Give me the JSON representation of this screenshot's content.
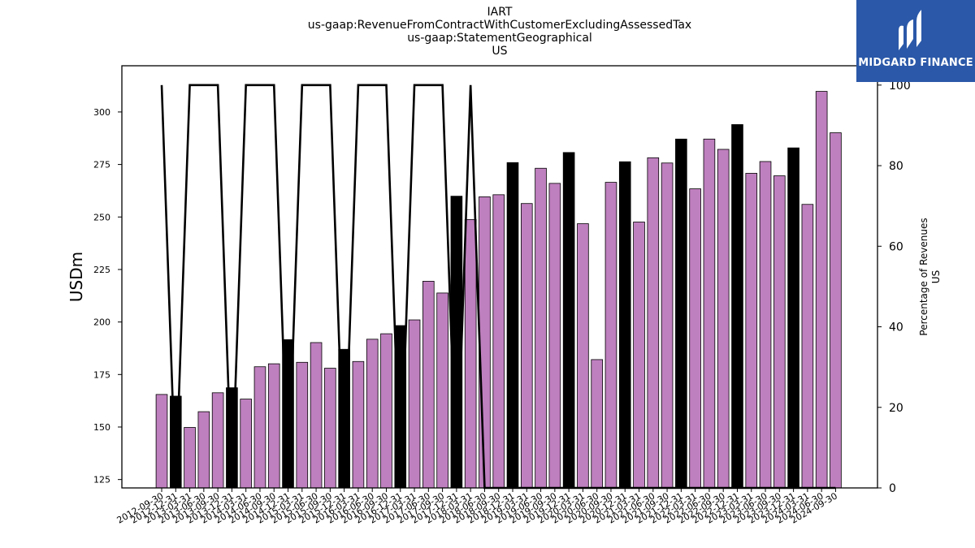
{
  "chart_data": {
    "type": "bar",
    "title_lines": [
      "IART",
      "us-gaap:RevenueFromContractWithCustomerExcludingAssessedTax",
      "us-gaap:StatementGeographical",
      "US"
    ],
    "ylabel": "USDm",
    "y2label_lines": [
      "Percentage of Revenues",
      "US"
    ],
    "ylim": [
      121,
      322
    ],
    "y2lim": [
      0,
      104.8
    ],
    "yticks": [
      125,
      150,
      175,
      200,
      225,
      250,
      275,
      300
    ],
    "y2ticks": [
      0,
      20,
      40,
      60,
      80,
      100
    ],
    "grid": false,
    "categories": [
      "2012-09-30",
      "2012-12-31",
      "2013-03-31",
      "2013-06-30",
      "2013-09-30",
      "2013-12-31",
      "2014-03-31",
      "2014-06-30",
      "2014-09-30",
      "2014-12-31",
      "2015-03-31",
      "2015-06-30",
      "2015-09-30",
      "2015-12-31",
      "2016-03-31",
      "2016-06-30",
      "2016-09-30",
      "2016-12-31",
      "2017-03-31",
      "2017-06-30",
      "2017-09-30",
      "2017-12-31",
      "2018-03-31",
      "2018-06-30",
      "2018-09-30",
      "2018-12-31",
      "2019-03-31",
      "2019-06-30",
      "2019-09-30",
      "2019-12-31",
      "2020-03-31",
      "2020-06-30",
      "2020-09-30",
      "2020-12-31",
      "2021-03-31",
      "2021-06-30",
      "2021-09-30",
      "2021-12-31",
      "2022-03-31",
      "2022-06-30",
      "2022-09-30",
      "2022-12-31",
      "2023-03-31",
      "2023-06-30",
      "2023-09-30",
      "2023-12-31",
      "2024-03-31",
      "2024-06-30",
      "2024-09-30"
    ],
    "series": [
      {
        "type": "bar",
        "axis": "left",
        "values": [
          165.5,
          164.7,
          149.8,
          157.3,
          166.3,
          168.7,
          163.3,
          178.7,
          180.1,
          191.6,
          180.8,
          190.2,
          178.0,
          187.0,
          181.2,
          191.8,
          194.4,
          198.3,
          201.0,
          219.4,
          213.8,
          259.9,
          248.8,
          259.6,
          260.6,
          275.9,
          256.4,
          273.2,
          266.0,
          280.7,
          246.8,
          182.1,
          266.5,
          276.3,
          247.6,
          278.2,
          275.7,
          287.1,
          263.4,
          287.1,
          282.2,
          294.0,
          270.8,
          276.4,
          269.6,
          282.9,
          256.0,
          309.8,
          290.1
        ],
        "colors": {
          "quarter": "#bf80bf",
          "year_end": "#000000"
        }
      },
      {
        "type": "line",
        "axis": "right",
        "values": [
          100,
          0,
          100,
          100,
          100,
          0,
          100,
          100,
          100,
          0,
          100,
          100,
          100,
          0,
          100,
          100,
          100,
          0,
          100,
          100,
          100,
          0,
          100,
          0,
          0,
          0,
          0,
          0,
          0,
          0,
          0,
          0,
          0,
          0,
          0,
          0,
          0,
          0,
          0,
          0,
          0,
          0,
          0,
          0,
          0,
          0,
          0,
          0,
          0
        ],
        "color": "#000000"
      }
    ]
  },
  "logo": {
    "text": "MIDGARD FINANCE",
    "background": "#2b58a8",
    "color": "#ffffff"
  }
}
